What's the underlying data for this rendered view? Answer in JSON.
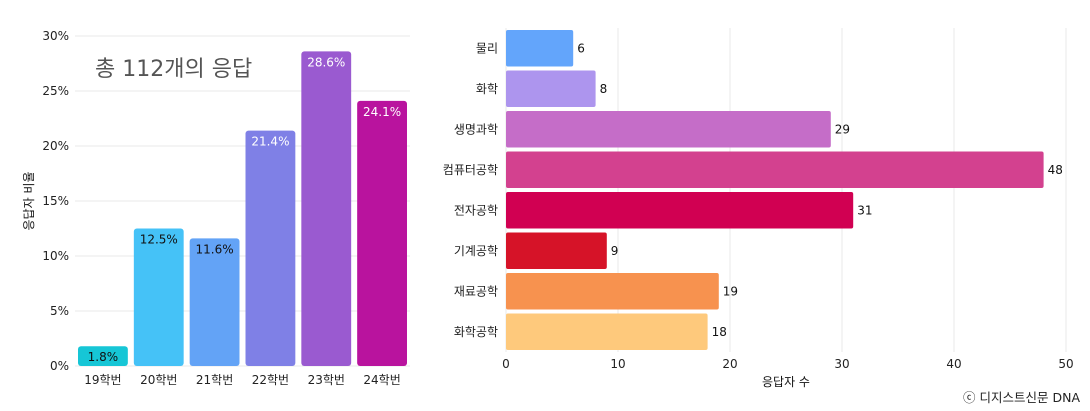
{
  "chart_data": [
    {
      "type": "bar",
      "annotation": "총 112개의 응답",
      "ylabel": "응답자 비율",
      "ylim": [
        0,
        30
      ],
      "yticks": [
        "0%",
        "5%",
        "10%",
        "15%",
        "20%",
        "25%",
        "30%"
      ],
      "categories": [
        "19학번",
        "20학번",
        "21학번",
        "22학번",
        "23학번",
        "24학번"
      ],
      "values": [
        1.8,
        12.5,
        11.6,
        21.4,
        28.6,
        24.1
      ],
      "value_labels": [
        "1.8%",
        "12.5%",
        "11.6%",
        "21.4%",
        "28.6%",
        "24.1%"
      ],
      "colors": [
        "#16c6d6",
        "#45c2f7",
        "#63a3f6",
        "#7f80e6",
        "#9a5ad0",
        "#b9139e"
      ],
      "label_colors": [
        "#111111",
        "#111111",
        "#111111",
        "#ffffff",
        "#ffffff",
        "#ffffff"
      ],
      "grid": true
    },
    {
      "type": "bar",
      "orientation": "horizontal",
      "xlabel": "응답자 수",
      "xlim": [
        0,
        50
      ],
      "xticks": [
        "0",
        "10",
        "20",
        "30",
        "40",
        "50"
      ],
      "categories": [
        "물리",
        "화학",
        "생명과학",
        "컴퓨터공학",
        "전자공학",
        "기계공학",
        "재료공학",
        "화학공학"
      ],
      "values": [
        6,
        8,
        29,
        48,
        31,
        9,
        19,
        18
      ],
      "value_labels": [
        "6",
        "8",
        "29",
        "48",
        "31",
        "9",
        "19",
        "18"
      ],
      "colors": [
        "#63a5fb",
        "#ad95ee",
        "#c56dc8",
        "#d3418f",
        "#d10052",
        "#d61328",
        "#f7924f",
        "#fec97c"
      ],
      "grid": true
    }
  ],
  "footer": {
    "credit": "ⓒ 디지스트신문 DNA"
  }
}
